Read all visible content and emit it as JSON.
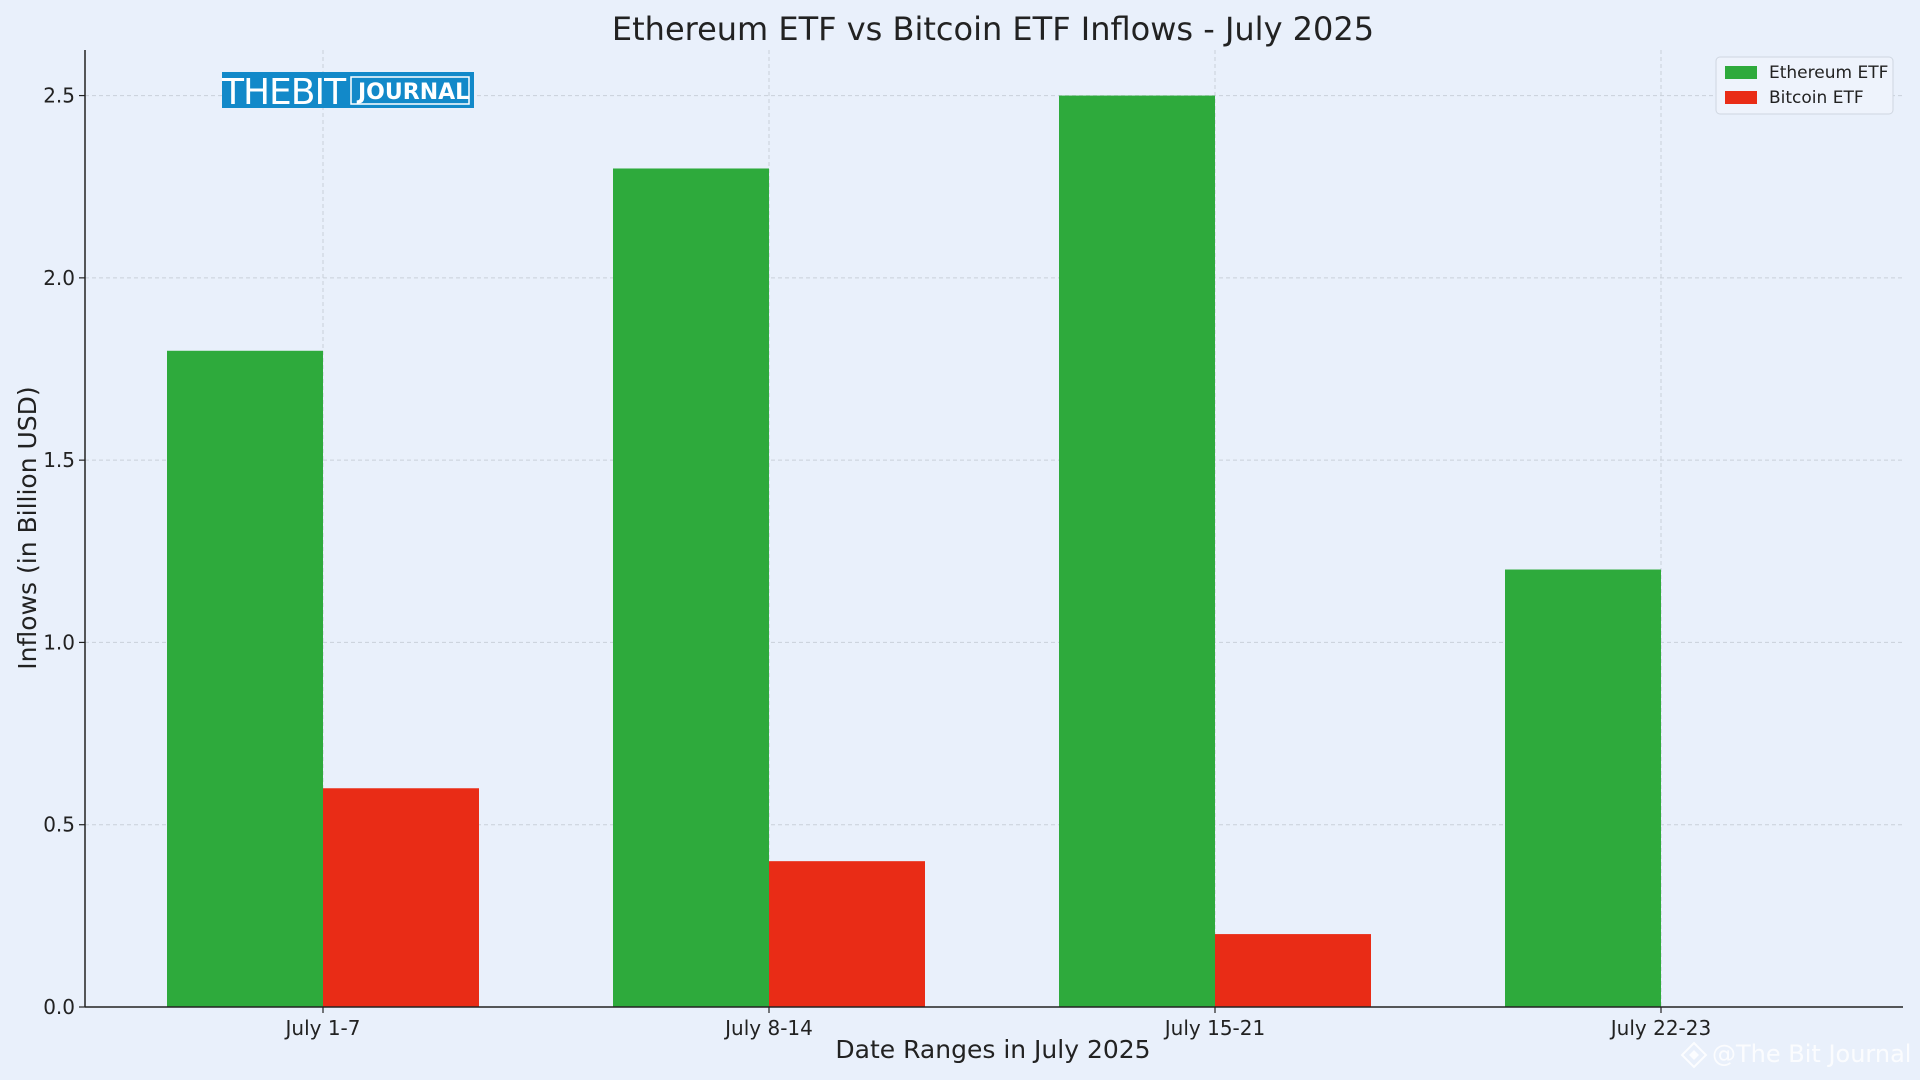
{
  "logo": {
    "part1": "THEBIT",
    "part2": "JOURNAL",
    "color": "#1289c9"
  },
  "watermark": "@The Bit Journal",
  "chart_data": {
    "type": "bar",
    "title": "Ethereum ETF vs Bitcoin ETF Inflows - July 2025",
    "xlabel": "Date Ranges in July 2025",
    "ylabel": "Inflows (in Billion USD)",
    "categories": [
      "July 1-7",
      "July 8-14",
      "July 15-21",
      "July 22-23"
    ],
    "series": [
      {
        "name": "Ethereum ETF",
        "color": "#2eaa3c",
        "values": [
          1.8,
          2.3,
          2.5,
          1.2
        ]
      },
      {
        "name": "Bitcoin ETF",
        "color": "#e92c16",
        "values": [
          0.6,
          0.4,
          0.2,
          0.0
        ]
      }
    ],
    "yticks": [
      "0.0",
      "0.5",
      "1.0",
      "1.5",
      "2.0",
      "2.5"
    ],
    "ylim": [
      0,
      2.625
    ],
    "grid": true,
    "legend": "top-right"
  }
}
